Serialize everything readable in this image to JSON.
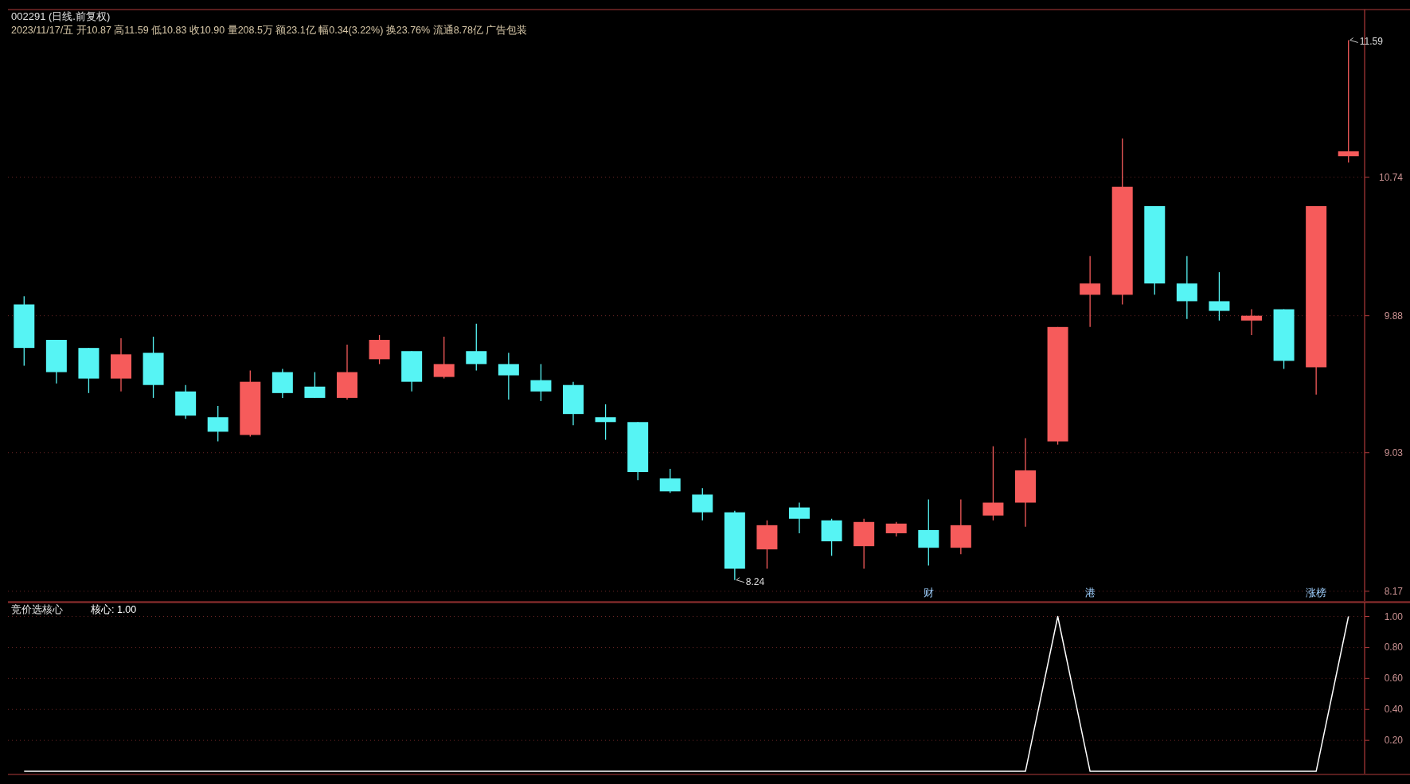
{
  "chart_data": [
    {
      "type": "candlestick",
      "title": "002291 (日线.前复权)",
      "subtitle": "2023/11/17/五 开10.87 高11.59 低10.83 收10.90 量208.5万 额23.1亿 幅0.34(3.22%) 换23.76% 流通8.78亿 广告包装",
      "categories": [
        null,
        null,
        null,
        null,
        null,
        null,
        null,
        null,
        null,
        null,
        null,
        null,
        null,
        null,
        null,
        null,
        null,
        null,
        null,
        null,
        null,
        null,
        null,
        null,
        null,
        null,
        null,
        null,
        null,
        null,
        null,
        null,
        null,
        null,
        null,
        null,
        null,
        null,
        null,
        null,
        null,
        null
      ],
      "ohlc": [
        [
          9.95,
          10.0,
          9.57,
          9.68
        ],
        [
          9.73,
          9.73,
          9.46,
          9.53
        ],
        [
          9.68,
          9.68,
          9.4,
          9.49
        ],
        [
          9.49,
          9.74,
          9.41,
          9.64
        ],
        [
          9.65,
          9.75,
          9.37,
          9.45
        ],
        [
          9.41,
          9.45,
          9.24,
          9.26
        ],
        [
          9.25,
          9.32,
          9.1,
          9.16
        ],
        [
          9.14,
          9.54,
          9.13,
          9.47
        ],
        [
          9.53,
          9.55,
          9.37,
          9.4
        ],
        [
          9.44,
          9.53,
          9.37,
          9.37
        ],
        [
          9.37,
          9.7,
          9.36,
          9.53
        ],
        [
          9.61,
          9.76,
          9.58,
          9.73
        ],
        [
          9.66,
          9.66,
          9.41,
          9.47
        ],
        [
          9.5,
          9.75,
          9.49,
          9.58
        ],
        [
          9.66,
          9.83,
          9.54,
          9.58
        ],
        [
          9.58,
          9.65,
          9.36,
          9.51
        ],
        [
          9.48,
          9.58,
          9.35,
          9.41
        ],
        [
          9.45,
          9.47,
          9.2,
          9.27
        ],
        [
          9.25,
          9.33,
          9.11,
          9.22
        ],
        [
          9.22,
          9.22,
          8.86,
          8.91
        ],
        [
          8.87,
          8.93,
          8.78,
          8.79
        ],
        [
          8.77,
          8.81,
          8.61,
          8.66
        ],
        [
          8.66,
          8.67,
          8.24,
          8.31
        ],
        [
          8.43,
          8.61,
          8.31,
          8.58
        ],
        [
          8.69,
          8.72,
          8.53,
          8.62
        ],
        [
          8.61,
          8.62,
          8.39,
          8.48
        ],
        [
          8.45,
          8.62,
          8.31,
          8.6
        ],
        [
          8.53,
          8.6,
          8.51,
          8.59
        ],
        [
          8.55,
          8.74,
          8.33,
          8.44
        ],
        [
          8.44,
          8.74,
          8.4,
          8.58
        ],
        [
          8.64,
          9.07,
          8.61,
          8.72
        ],
        [
          8.72,
          9.12,
          8.57,
          8.92
        ],
        [
          9.1,
          9.81,
          9.08,
          9.81
        ],
        [
          10.01,
          10.25,
          9.81,
          10.08
        ],
        [
          10.01,
          10.98,
          9.95,
          10.68
        ],
        [
          10.56,
          10.56,
          10.01,
          10.08
        ],
        [
          10.08,
          10.25,
          9.86,
          9.97
        ],
        [
          9.97,
          10.15,
          9.85,
          9.91
        ],
        [
          9.85,
          9.92,
          9.76,
          9.88
        ],
        [
          9.92,
          9.92,
          9.55,
          9.6
        ],
        [
          9.56,
          10.56,
          9.39,
          10.56
        ],
        [
          10.87,
          11.59,
          10.83,
          10.9
        ]
      ],
      "colors": [
        "#56f4f4",
        "#56f4f4",
        "#56f4f4",
        "#f65b5b",
        "#56f4f4",
        "#56f4f4",
        "#56f4f4",
        "#f65b5b",
        "#56f4f4",
        "#56f4f4",
        "#f65b5b",
        "#f65b5b",
        "#56f4f4",
        "#f65b5b",
        "#56f4f4",
        "#56f4f4",
        "#56f4f4",
        "#56f4f4",
        "#56f4f4",
        "#56f4f4",
        "#56f4f4",
        "#56f4f4",
        "#56f4f4",
        "#f65b5b",
        "#56f4f4",
        "#56f4f4",
        "#f65b5b",
        "#f65b5b",
        "#56f4f4",
        "#f65b5b",
        "#f65b5b",
        "#f65b5b",
        "#f65b5b",
        "#f65b5b",
        "#f65b5b",
        "#56f4f4",
        "#56f4f4",
        "#56f4f4",
        "#f65b5b",
        "#56f4f4",
        "#f65b5b",
        "#f65b5b"
      ],
      "value_labels": [
        null,
        null,
        null,
        null,
        null,
        null,
        null,
        null,
        null,
        null,
        null,
        null,
        null,
        null,
        null,
        null,
        null,
        null,
        null,
        null,
        null,
        null,
        null,
        null,
        null,
        null,
        null,
        null,
        "财",
        null,
        null,
        null,
        null,
        "港",
        null,
        null,
        null,
        null,
        null,
        null,
        "涨榜",
        null
      ],
      "annotations": [
        "11.59",
        "8.24"
      ],
      "ylim": [
        8.11,
        11.78
      ],
      "yticks": [
        8.17,
        9.03,
        9.88,
        10.74
      ],
      "grid": "y"
    },
    {
      "type": "line",
      "title": "竞价选核心",
      "subtitle": "核心: 1.00",
      "categories": [
        null,
        null,
        null,
        null,
        null,
        null,
        null,
        null,
        null,
        null,
        null,
        null,
        null,
        null,
        null,
        null,
        null,
        null,
        null,
        null,
        null,
        null,
        null,
        null,
        null,
        null,
        null,
        null,
        null,
        null,
        null,
        null,
        null,
        null,
        null,
        null,
        null,
        null,
        null,
        null,
        null,
        null
      ],
      "series": [
        {
          "color": "#ffffff",
          "values": [
            0,
            0,
            0,
            0,
            0,
            0,
            0,
            0,
            0,
            0,
            0,
            0,
            0,
            0,
            0,
            0,
            0,
            0,
            0,
            0,
            0,
            0,
            0,
            0,
            0,
            0,
            0,
            0,
            0,
            0,
            0,
            0,
            1,
            0,
            0,
            0,
            0,
            0,
            0,
            0,
            0,
            1
          ]
        }
      ],
      "ylim": [
        -0.015,
        1.09
      ],
      "yticks": [
        {
          "value": 0.2,
          "label": "0.20"
        },
        {
          "value": 0.4,
          "label": "0.40"
        },
        {
          "value": 0.6,
          "label": "0.60"
        },
        {
          "value": 0.8,
          "label": "0.80"
        },
        {
          "value": 1.0,
          "label": "1.00"
        }
      ],
      "grid": "y"
    }
  ]
}
